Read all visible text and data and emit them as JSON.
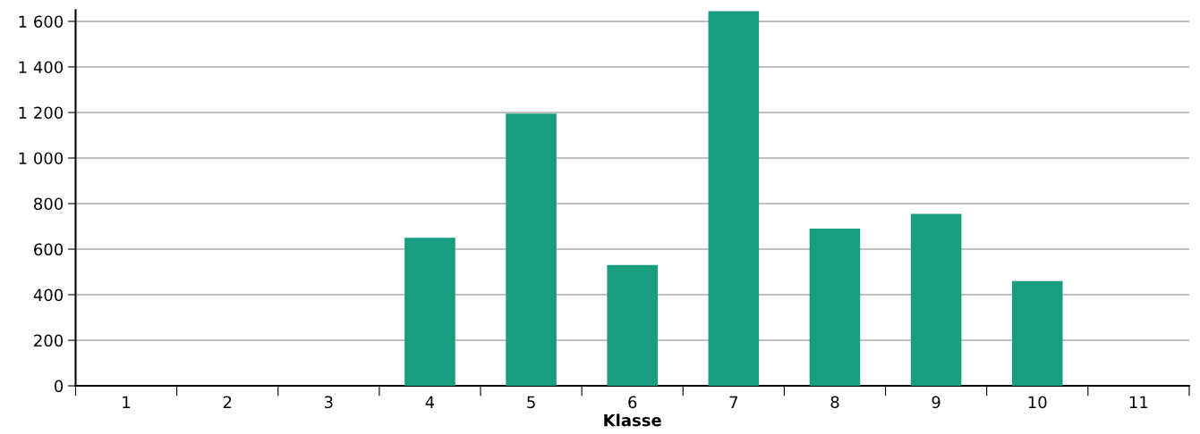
{
  "chart_data": {
    "type": "bar",
    "xlabel": "Klasse",
    "categories": [
      "1",
      "2",
      "3",
      "4",
      "5",
      "6",
      "7",
      "8",
      "9",
      "10",
      "11"
    ],
    "values": [
      0,
      0,
      0,
      650,
      1195,
      530,
      1645,
      690,
      755,
      460,
      0
    ],
    "color": "#1a9c7e",
    "ylim": [
      0,
      1650
    ],
    "yticks": [
      0,
      200,
      400,
      600,
      800,
      {
        "value": 1000,
        "label": "1 000"
      },
      {
        "value": 1200,
        "label": "1 200"
      },
      {
        "value": 1400,
        "label": "1 400"
      },
      {
        "value": 1600,
        "label": "1 600"
      }
    ],
    "grid": "y"
  }
}
